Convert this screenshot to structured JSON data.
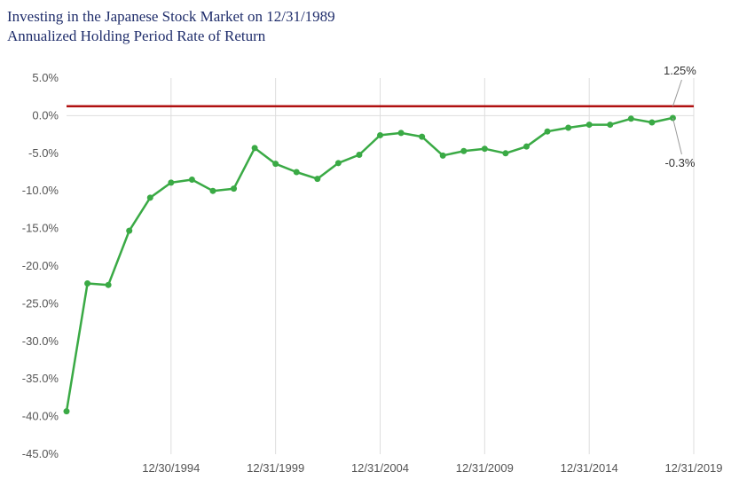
{
  "chart_data": {
    "type": "line",
    "title": "Investing in the Japanese Stock Market on 12/31/1989",
    "subtitle": "Annualized Holding Period Rate of Return",
    "xlabel": "",
    "ylabel": "",
    "x_ticks": [
      "12/30/1994",
      "12/31/1999",
      "12/31/2004",
      "12/31/2009",
      "12/31/2014",
      "12/31/2019"
    ],
    "y_ticks": [
      "5.0%",
      "0.0%",
      "-5.0%",
      "-10.0%",
      "-15.0%",
      "-20.0%",
      "-25.0%",
      "-30.0%",
      "-35.0%",
      "-40.0%",
      "-45.0%"
    ],
    "ylim": [
      -45,
      5
    ],
    "xlim": [
      1990,
      2020
    ],
    "grid": "vertical",
    "series": [
      {
        "color": "#3aaa45",
        "x": [
          1990,
          1991,
          1992,
          1993,
          1994,
          1995,
          1996,
          1997,
          1998,
          1999,
          2000,
          2001,
          2002,
          2003,
          2004,
          2005,
          2006,
          2007,
          2008,
          2009,
          2010,
          2011,
          2012,
          2013,
          2014,
          2015,
          2016,
          2017,
          2018,
          2019
        ],
        "values": [
          -39.3,
          -22.3,
          -22.5,
          -15.3,
          -10.9,
          -8.9,
          -8.5,
          -10.0,
          -9.7,
          -4.3,
          -6.4,
          -7.5,
          -8.4,
          -6.3,
          -5.2,
          -2.6,
          -2.3,
          -2.8,
          -5.3,
          -4.7,
          -4.4,
          -5.0,
          -4.1,
          -2.1,
          -1.6,
          -1.2,
          -1.2,
          -0.4,
          -0.9,
          -0.3
        ]
      }
    ],
    "reference_line": {
      "value": 1.25,
      "color": "#b01010"
    },
    "annotations": [
      {
        "text": "1.25%",
        "x": 2019,
        "y": 1.25
      },
      {
        "text": "-0.3%",
        "x": 2019,
        "y": -0.3
      }
    ]
  }
}
